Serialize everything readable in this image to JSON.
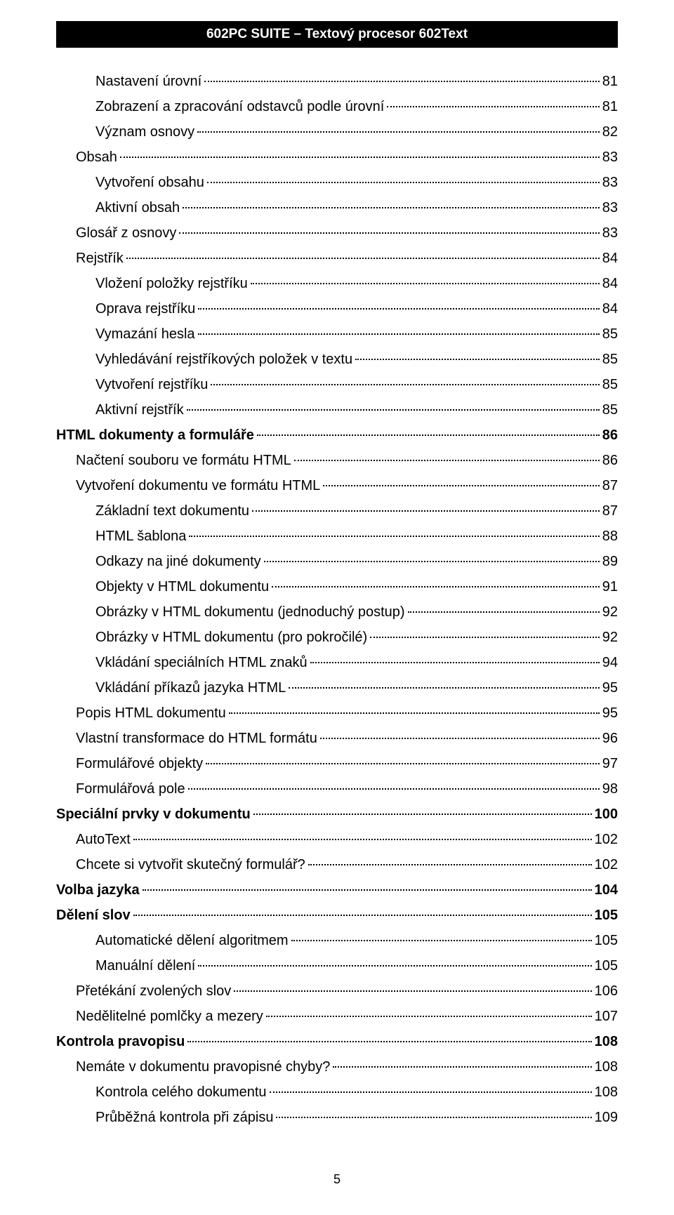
{
  "header": "602PC SUITE – Textový procesor 602Text",
  "pageNumber": "5",
  "entries": [
    {
      "level": 2,
      "label": "Nastavení úrovní",
      "page": "81"
    },
    {
      "level": 2,
      "label": "Zobrazení a zpracování odstavců podle úrovní",
      "page": "81"
    },
    {
      "level": 2,
      "label": "Význam osnovy",
      "page": "82"
    },
    {
      "level": 1,
      "label": "Obsah",
      "page": "83"
    },
    {
      "level": 2,
      "label": "Vytvoření obsahu",
      "page": "83"
    },
    {
      "level": 2,
      "label": "Aktivní obsah",
      "page": "83"
    },
    {
      "level": 1,
      "label": "Glosář z osnovy",
      "page": "83"
    },
    {
      "level": 1,
      "label": "Rejstřík",
      "page": "84"
    },
    {
      "level": 2,
      "label": "Vložení položky rejstříku",
      "page": "84"
    },
    {
      "level": 2,
      "label": "Oprava rejstříku",
      "page": "84"
    },
    {
      "level": 2,
      "label": "Vymazání hesla",
      "page": "85"
    },
    {
      "level": 2,
      "label": "Vyhledávání rejstříkových položek v textu",
      "page": "85"
    },
    {
      "level": 2,
      "label": "Vytvoření rejstříku",
      "page": "85"
    },
    {
      "level": 2,
      "label": "Aktivní rejstřík",
      "page": "85"
    },
    {
      "level": 0,
      "label": "HTML dokumenty a formuláře",
      "page": "86"
    },
    {
      "level": 1,
      "label": "Načtení souboru ve formátu HTML",
      "page": "86"
    },
    {
      "level": 1,
      "label": "Vytvoření dokumentu ve formátu HTML",
      "page": "87"
    },
    {
      "level": 2,
      "label": "Základní text dokumentu",
      "page": "87"
    },
    {
      "level": 2,
      "label": "HTML šablona",
      "page": "88"
    },
    {
      "level": 2,
      "label": "Odkazy na jiné dokumenty",
      "page": "89"
    },
    {
      "level": 2,
      "label": "Objekty v HTML dokumentu",
      "page": "91"
    },
    {
      "level": 2,
      "label": "Obrázky v HTML dokumentu (jednoduchý postup)",
      "page": "92"
    },
    {
      "level": 2,
      "label": "Obrázky v HTML dokumentu (pro pokročilé)",
      "page": "92"
    },
    {
      "level": 2,
      "label": "Vkládání speciálních HTML znaků",
      "page": "94"
    },
    {
      "level": 2,
      "label": "Vkládání příkazů jazyka HTML",
      "page": "95"
    },
    {
      "level": 1,
      "label": "Popis HTML dokumentu",
      "page": "95"
    },
    {
      "level": 1,
      "label": "Vlastní transformace do HTML formátu",
      "page": "96"
    },
    {
      "level": 1,
      "label": "Formulářové objekty",
      "page": "97"
    },
    {
      "level": 1,
      "label": "Formulářová pole",
      "page": "98"
    },
    {
      "level": 0,
      "label": "Speciální prvky v dokumentu",
      "page": "100"
    },
    {
      "level": 1,
      "label": "AutoText",
      "page": "102"
    },
    {
      "level": 1,
      "label": "Chcete si vytvořit skutečný formulář?",
      "page": "102"
    },
    {
      "level": 0,
      "label": "Volba jazyka",
      "page": "104"
    },
    {
      "level": 0,
      "label": "Dělení slov",
      "page": "105"
    },
    {
      "level": 2,
      "label": "Automatické dělení algoritmem",
      "page": "105"
    },
    {
      "level": 2,
      "label": "Manuální dělení",
      "page": "105"
    },
    {
      "level": 1,
      "label": "Přetékání zvolených slov",
      "page": "106"
    },
    {
      "level": 1,
      "label": "Nedělitelné pomlčky a mezery",
      "page": "107"
    },
    {
      "level": 0,
      "label": "Kontrola pravopisu",
      "page": "108"
    },
    {
      "level": 1,
      "label": "Nemáte v dokumentu pravopisné chyby?",
      "page": "108"
    },
    {
      "level": 2,
      "label": "Kontrola celého dokumentu",
      "page": "108"
    },
    {
      "level": 2,
      "label": "Průběžná kontrola při zápisu",
      "page": "109"
    }
  ]
}
